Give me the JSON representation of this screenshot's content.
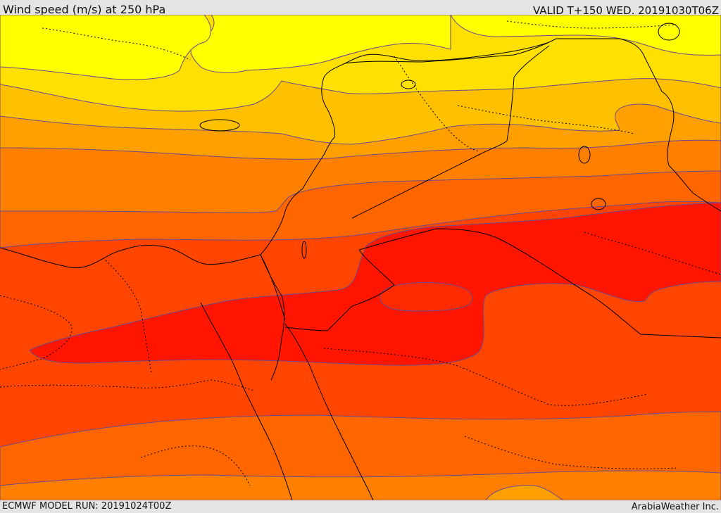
{
  "header": {
    "title": "Wind speed (m/s) at 250 hPa",
    "valid_time": "VALID T+150 WED. 20191030T06Z"
  },
  "footer": {
    "model_run": "ECMWF MODEL RUN: 20191024T00Z",
    "credit": "ArabiaWeather Inc."
  },
  "map": {
    "variable": "wind speed",
    "units": "m/s",
    "level": "250 hPa",
    "colors": {
      "band_lightest": "#ffff00",
      "band_2": "#ffe000",
      "band_3": "#ffc000",
      "band_4": "#ffa000",
      "band_5": "#ff8000",
      "band_6": "#ff6600",
      "band_7": "#ff4500",
      "band_8": "#ff2a00",
      "band_darkest": "#ff1500",
      "contour_line": "#6a4a8a",
      "coastline": "#000000",
      "border": "#000000"
    }
  }
}
